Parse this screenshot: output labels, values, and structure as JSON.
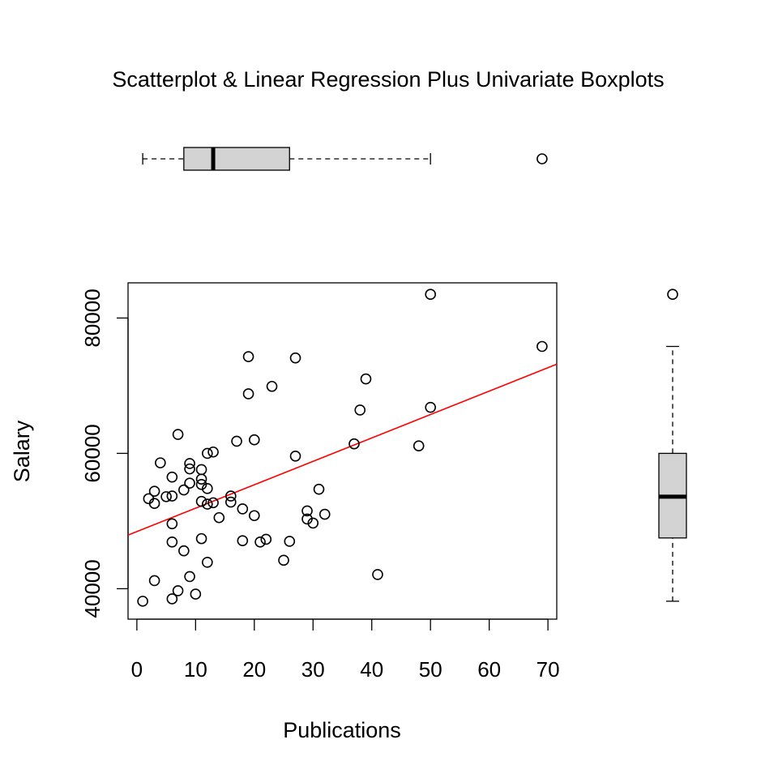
{
  "chart_data": {
    "type": "scatter",
    "title": "Scatterplot & Linear Regression Plus Univariate Boxplots",
    "xlabel": "Publications",
    "ylabel": "Salary",
    "xlim": [
      -1.5,
      71.5
    ],
    "ylim": [
      35500,
      85200
    ],
    "x_ticks": [
      0,
      10,
      20,
      30,
      40,
      50,
      60,
      70
    ],
    "y_ticks": [
      40000,
      60000,
      80000
    ],
    "x_tick_labels": [
      "0",
      "10",
      "20",
      "30",
      "40",
      "50",
      "60",
      "70"
    ],
    "y_tick_labels": [
      "40000",
      "60000",
      "80000"
    ],
    "points": [
      [
        1,
        38150
      ],
      [
        2,
        53300
      ],
      [
        3,
        54400
      ],
      [
        3,
        52600
      ],
      [
        3,
        41200
      ],
      [
        4,
        58600
      ],
      [
        5,
        53600
      ],
      [
        6,
        56500
      ],
      [
        6,
        53700
      ],
      [
        6,
        49600
      ],
      [
        6,
        46900
      ],
      [
        6,
        38500
      ],
      [
        7,
        62800
      ],
      [
        7,
        39700
      ],
      [
        8,
        54600
      ],
      [
        8,
        45600
      ],
      [
        9,
        58500
      ],
      [
        9,
        57700
      ],
      [
        9,
        55600
      ],
      [
        9,
        41800
      ],
      [
        10,
        39200
      ],
      [
        11,
        57600
      ],
      [
        11,
        56200
      ],
      [
        11,
        55400
      ],
      [
        11,
        52900
      ],
      [
        11,
        47400
      ],
      [
        12,
        60000
      ],
      [
        12,
        54800
      ],
      [
        12,
        52500
      ],
      [
        12,
        43900
      ],
      [
        13,
        60200
      ],
      [
        13,
        52700
      ],
      [
        14,
        50500
      ],
      [
        16,
        53700
      ],
      [
        16,
        52800
      ],
      [
        17,
        61800
      ],
      [
        18,
        51800
      ],
      [
        18,
        47100
      ],
      [
        19,
        74300
      ],
      [
        19,
        68800
      ],
      [
        20,
        62000
      ],
      [
        20,
        50800
      ],
      [
        21,
        46900
      ],
      [
        22,
        47300
      ],
      [
        23,
        69900
      ],
      [
        25,
        44200
      ],
      [
        26,
        47000
      ],
      [
        27,
        74100
      ],
      [
        27,
        59600
      ],
      [
        29,
        51500
      ],
      [
        29,
        50300
      ],
      [
        30,
        49700
      ],
      [
        31,
        54700
      ],
      [
        32,
        51000
      ],
      [
        37,
        61400
      ],
      [
        38,
        66400
      ],
      [
        39,
        71000
      ],
      [
        41,
        42100
      ],
      [
        48,
        61100
      ],
      [
        50,
        83500
      ],
      [
        50,
        66800
      ],
      [
        69,
        75800
      ]
    ],
    "regression": {
      "intercept": 48440,
      "slope": 346
    },
    "boxplot_x": {
      "whisker_low": 1,
      "q1": 8,
      "median": 13,
      "q3": 26,
      "whisker_high": 50,
      "outliers": [
        69
      ]
    },
    "boxplot_y": {
      "whisker_low": 38150,
      "q1": 47500,
      "median": 53600,
      "q3": 60000,
      "whisker_high": 75800,
      "outliers": [
        83500
      ]
    },
    "grid": false,
    "colors": {
      "points": "#000000",
      "regression": "#ff0000",
      "box_fill": "#d3d3d3"
    }
  }
}
